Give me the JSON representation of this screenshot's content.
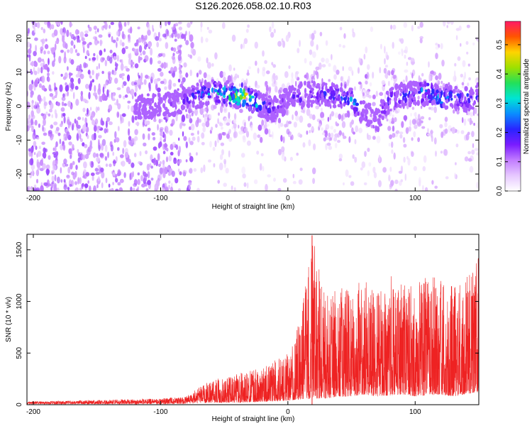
{
  "title": "S126.2026.058.02.10.R03",
  "colors": {
    "snr_line": "#ee2222",
    "frame": "#000000",
    "colorbar_stops": [
      "#ffffff",
      "#e6c8ff",
      "#c27cff",
      "#7a1cff",
      "#2a24ff",
      "#0a8cff",
      "#00e5d4",
      "#23e05a",
      "#9ee000",
      "#ffd400",
      "#ff5500",
      "#ff1a66"
    ]
  },
  "chart_data": [
    {
      "type": "heatmap",
      "name": "spectrogram",
      "xlabel": "Height of straight line (km)",
      "ylabel": "Frequency (Hz)",
      "xlim": [
        -205,
        150
      ],
      "ylim": [
        -25,
        25
      ],
      "xticks": [
        -200,
        -100,
        0,
        100
      ],
      "xtick_labels": [
        "-200",
        "-100",
        "0",
        "100"
      ],
      "yticks": [
        -20,
        -10,
        0,
        10,
        20
      ],
      "ytick_labels": [
        "-20",
        "-10",
        "0",
        "10",
        "20"
      ],
      "colorbar": {
        "label": "Normalized spectral amplitude",
        "range": [
          0.0,
          0.58
        ],
        "ticks": [
          0.0,
          0.1,
          0.2,
          0.3,
          0.4,
          0.5
        ],
        "tick_labels": [
          "0.0",
          "0.1",
          "0.2",
          "0.3",
          "0.4",
          "0.5"
        ]
      },
      "signal_track": {
        "description": "strongest ridge near 0 Hz, peak amplitude ~0.55 near x=-36",
        "x": [
          -120,
          -100,
          -80,
          -60,
          -50,
          -40,
          -35,
          -30,
          -20,
          -10,
          0,
          20,
          40,
          50,
          60,
          70,
          80,
          100,
          110,
          120,
          130,
          140,
          150
        ],
        "freq_hz": [
          0,
          0,
          2,
          4,
          4,
          3,
          3,
          2,
          0,
          -1,
          2,
          4,
          3,
          2,
          -2,
          -4,
          2,
          4,
          4,
          2,
          3,
          2,
          3
        ],
        "amplitude": [
          0.08,
          0.12,
          0.18,
          0.3,
          0.35,
          0.45,
          0.55,
          0.4,
          0.25,
          0.15,
          0.18,
          0.2,
          0.22,
          0.3,
          0.15,
          0.12,
          0.2,
          0.25,
          0.3,
          0.28,
          0.22,
          0.25,
          0.2
        ]
      },
      "noise_floor": {
        "dense_region_x": [
          -205,
          -75
        ],
        "sparse_band_x": [
          -75,
          150
        ],
        "sparse_band_freq_hz": [
          10,
          25
        ]
      }
    },
    {
      "type": "line",
      "name": "snr",
      "xlabel": "Height of straight line (km)",
      "ylabel": "SNR (10 * v/v)",
      "xlim": [
        -205,
        150
      ],
      "ylim": [
        0,
        1650
      ],
      "xticks": [
        -200,
        -100,
        0,
        100
      ],
      "xtick_labels": [
        "-200",
        "-100",
        "0",
        "100"
      ],
      "yticks": [
        0,
        500,
        1000,
        1500
      ],
      "ytick_labels": [
        "0",
        "500",
        "1000",
        "1500"
      ],
      "envelope": {
        "x": [
          -205,
          -150,
          -100,
          -80,
          -62,
          -40,
          -20,
          0,
          10,
          20,
          30,
          40,
          50,
          60,
          70,
          80,
          90,
          100,
          110,
          120,
          130,
          140,
          150
        ],
        "upper": [
          30,
          45,
          60,
          80,
          230,
          300,
          360,
          500,
          850,
          1640,
          1050,
          1150,
          1100,
          1300,
          1150,
          1250,
          1200,
          1180,
          1300,
          1200,
          1150,
          1280,
          1500
        ],
        "lower": [
          5,
          5,
          5,
          8,
          20,
          20,
          30,
          40,
          50,
          60,
          60,
          80,
          80,
          100,
          80,
          90,
          100,
          80,
          90,
          100,
          80,
          100,
          120
        ]
      },
      "notable_peak": {
        "x": 19,
        "y": 1640
      }
    }
  ]
}
